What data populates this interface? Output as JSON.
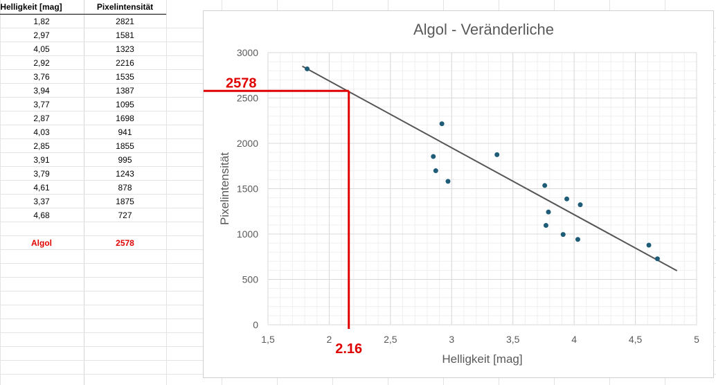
{
  "table": {
    "headers": [
      "Helligkeit [mag]",
      "Pixelintensität"
    ],
    "rows": [
      [
        "1,82",
        "2821"
      ],
      [
        "2,97",
        "1581"
      ],
      [
        "4,05",
        "1323"
      ],
      [
        "2,92",
        "2216"
      ],
      [
        "3,76",
        "1535"
      ],
      [
        "3,94",
        "1387"
      ],
      [
        "3,77",
        "1095"
      ],
      [
        "2,87",
        "1698"
      ],
      [
        "4,03",
        "941"
      ],
      [
        "2,85",
        "1855"
      ],
      [
        "3,91",
        "995"
      ],
      [
        "3,79",
        "1243"
      ],
      [
        "4,61",
        "878"
      ],
      [
        "3,37",
        "1875"
      ],
      [
        "4,68",
        "727"
      ]
    ],
    "highlight_row": [
      "Algol",
      "2578"
    ]
  },
  "chart_data": {
    "type": "scatter",
    "title": "Algol - Veränderliche",
    "xlabel": "Helligkeit [mag]",
    "ylabel": "Pixelintensität",
    "xlim": [
      1.5,
      5
    ],
    "ylim": [
      0,
      3000
    ],
    "x_ticks": [
      "1,5",
      "2",
      "2,5",
      "3",
      "3,5",
      "4",
      "4,5",
      "5"
    ],
    "x_tick_values": [
      1.5,
      2,
      2.5,
      3,
      3.5,
      4,
      4.5,
      5
    ],
    "y_ticks": [
      "0",
      "500",
      "1000",
      "1500",
      "2000",
      "2500",
      "3000"
    ],
    "y_tick_values": [
      0,
      500,
      1000,
      1500,
      2000,
      2500,
      3000
    ],
    "grid": true,
    "minor_grid": true,
    "points": [
      {
        "x": 1.82,
        "y": 2821
      },
      {
        "x": 2.97,
        "y": 1581
      },
      {
        "x": 4.05,
        "y": 1323
      },
      {
        "x": 2.92,
        "y": 2216
      },
      {
        "x": 3.76,
        "y": 1535
      },
      {
        "x": 3.94,
        "y": 1387
      },
      {
        "x": 3.77,
        "y": 1095
      },
      {
        "x": 2.87,
        "y": 1698
      },
      {
        "x": 4.03,
        "y": 941
      },
      {
        "x": 2.85,
        "y": 1855
      },
      {
        "x": 3.91,
        "y": 995
      },
      {
        "x": 3.79,
        "y": 1243
      },
      {
        "x": 4.61,
        "y": 878
      },
      {
        "x": 3.37,
        "y": 1875
      },
      {
        "x": 4.68,
        "y": 727
      }
    ],
    "trendline": {
      "x1": 1.78,
      "y1": 2850,
      "x2": 4.84,
      "y2": 595
    },
    "annotation": {
      "x": 2.16,
      "y": 2578,
      "x_label": "2.16",
      "y_label": "2578"
    },
    "colors": {
      "points": "#1f5c78",
      "trendline": "#555555",
      "annotation": "#e00000",
      "grid_major": "#d9d9d9",
      "grid_minor": "#efefef",
      "text": "#595959"
    }
  }
}
